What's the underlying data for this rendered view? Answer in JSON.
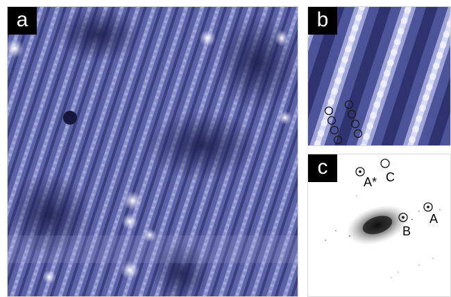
{
  "panels": {
    "a": {
      "label": "a"
    },
    "b": {
      "label": "b"
    },
    "c": {
      "label": "c",
      "spots": [
        "A*",
        "C",
        "A",
        "B"
      ]
    }
  },
  "colors": {
    "stm_dark": "#2b2f66",
    "stm_mid": "#6a6fb0",
    "stm_light": "#e6e8fa",
    "fft_bg": "#ffffff",
    "label_bg": "#000000"
  }
}
